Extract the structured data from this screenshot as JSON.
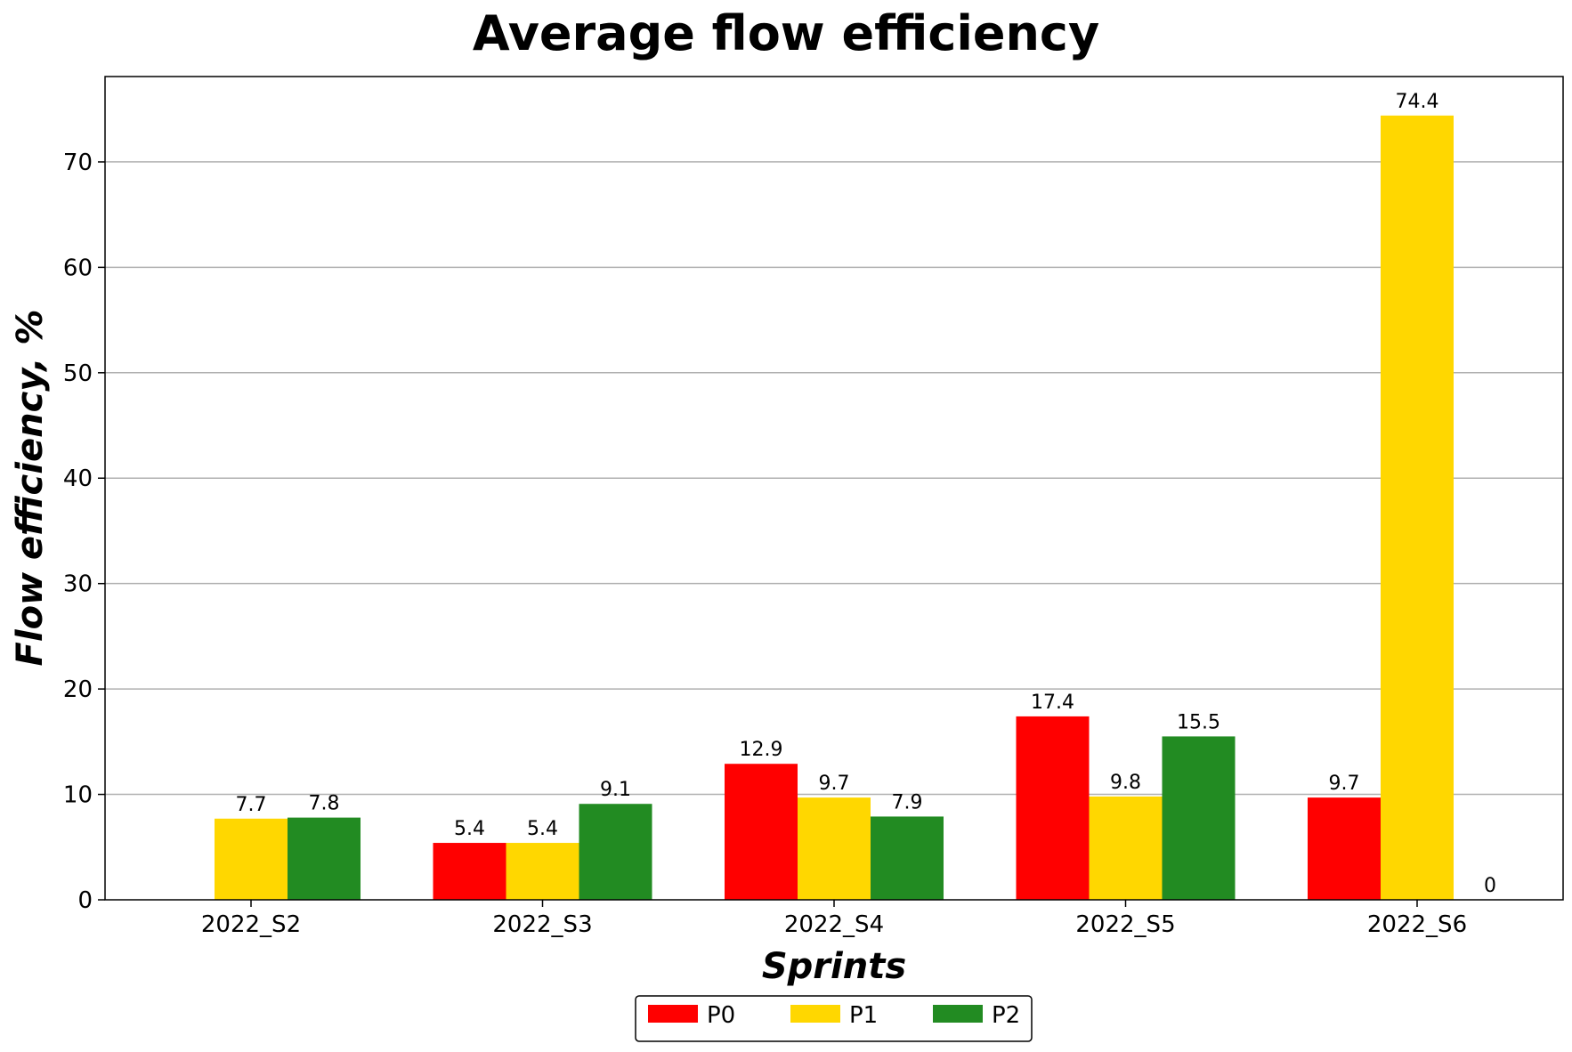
{
  "chart_data": {
    "type": "bar",
    "title": "Average flow efficiency",
    "xlabel": "Sprints",
    "ylabel": "Flow efficiency, %",
    "categories": [
      "2022_S2",
      "2022_S3",
      "2022_S4",
      "2022_S5",
      "2022_S6"
    ],
    "series": [
      {
        "name": "P0",
        "color": "#ff0000",
        "values": [
          null,
          5.4,
          12.9,
          17.4,
          9.7
        ],
        "labels": [
          "",
          "5.4",
          "12.9",
          "17.4",
          "9.7"
        ]
      },
      {
        "name": "P1",
        "color": "#ffd700",
        "values": [
          7.7,
          5.4,
          9.7,
          9.8,
          74.4
        ],
        "labels": [
          "7.7",
          "5.4",
          "9.7",
          "9.8",
          "74.4"
        ]
      },
      {
        "name": "P2",
        "color": "#228b22",
        "values": [
          7.8,
          9.1,
          7.9,
          15.5,
          0
        ],
        "labels": [
          "7.8",
          "9.1",
          "7.9",
          "15.5",
          "0"
        ]
      }
    ],
    "ylim": [
      0,
      78.1
    ],
    "yticks": [
      0,
      10,
      20,
      30,
      40,
      50,
      60,
      70
    ],
    "grid": "horizontal",
    "legend": "bottom-center"
  }
}
